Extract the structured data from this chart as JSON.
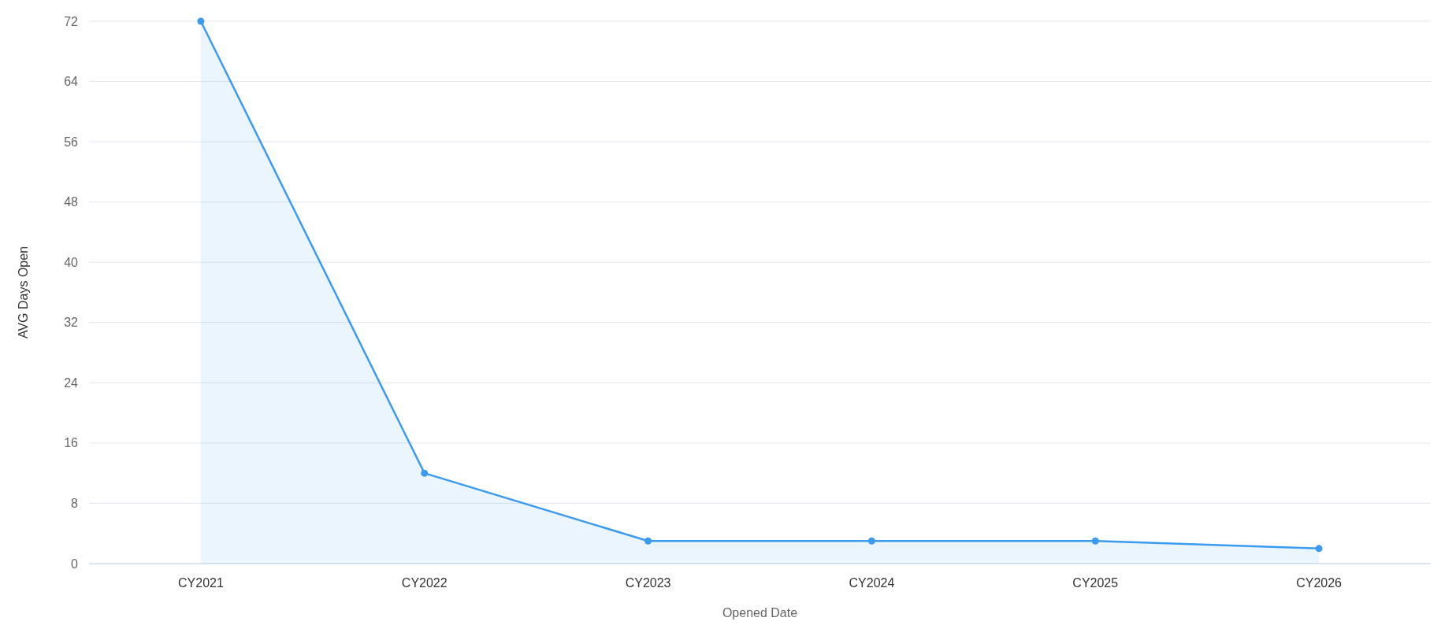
{
  "chart_data": {
    "type": "area",
    "xlabel": "Opened Date",
    "ylabel": "AVG Days Open",
    "categories": [
      "CY2021",
      "CY2022",
      "CY2023",
      "CY2024",
      "CY2025",
      "CY2026"
    ],
    "series": [
      {
        "color": "#3a9bf0",
        "values": [
          72,
          12,
          3,
          3,
          3,
          2
        ]
      }
    ],
    "ylim": [
      0,
      72
    ],
    "yticks": [
      0,
      8,
      16,
      24,
      32,
      40,
      48,
      56,
      64,
      72
    ],
    "grid": "y",
    "marker": "circle"
  }
}
